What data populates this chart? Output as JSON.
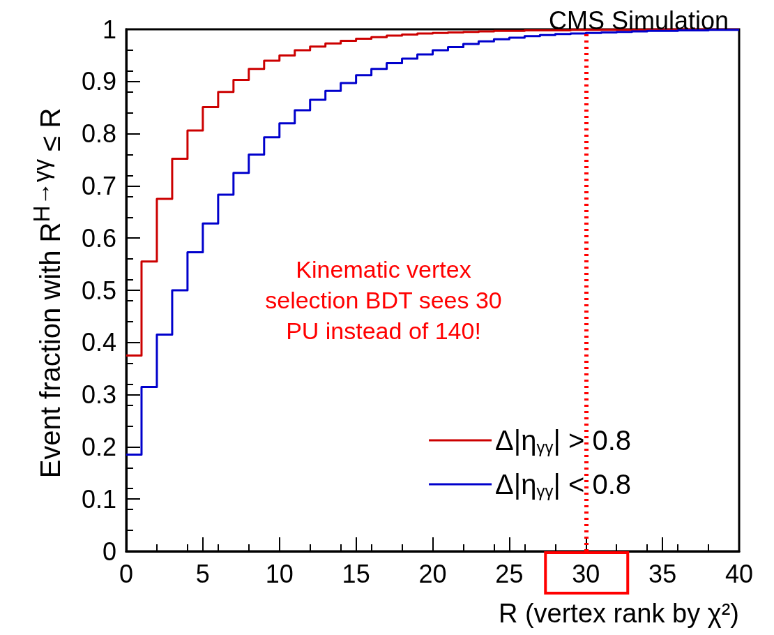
{
  "chart_data": {
    "type": "step",
    "title": "CMS Simulation",
    "xlabel": "R (vertex rank by χ²)",
    "ylabel": "Event fraction with R$^{H→γγ}$ ≤ R",
    "x": [
      0,
      1,
      2,
      3,
      4,
      5,
      6,
      7,
      8,
      9,
      10,
      11,
      12,
      13,
      14,
      15,
      16,
      17,
      18,
      19,
      20,
      21,
      22,
      23,
      24,
      25,
      26,
      27,
      28,
      29,
      30,
      31,
      32,
      33,
      34,
      35,
      36,
      37,
      38,
      39,
      40
    ],
    "series": [
      {
        "name": "Δ|η$_{γγ}$| > 0.8",
        "color": "#cc0000",
        "values": [
          0.375,
          0.555,
          0.675,
          0.752,
          0.806,
          0.851,
          0.88,
          0.903,
          0.924,
          0.94,
          0.95,
          0.96,
          0.967,
          0.973,
          0.978,
          0.982,
          0.985,
          0.988,
          0.99,
          0.992,
          0.993,
          0.994,
          0.995,
          0.996,
          0.997,
          0.997,
          0.998,
          0.998,
          0.998,
          0.999,
          0.999,
          0.999,
          0.999,
          0.999,
          1.0,
          1.0,
          1.0,
          1.0,
          1.0,
          1.0,
          1.0
        ]
      },
      {
        "name": "Δ|η$_{γγ}$| < 0.8",
        "color": "#0000cc",
        "values": [
          0.185,
          0.315,
          0.415,
          0.5,
          0.573,
          0.628,
          0.683,
          0.725,
          0.76,
          0.793,
          0.82,
          0.845,
          0.865,
          0.882,
          0.897,
          0.912,
          0.924,
          0.935,
          0.944,
          0.952,
          0.96,
          0.966,
          0.972,
          0.977,
          0.981,
          0.984,
          0.987,
          0.989,
          0.991,
          0.992,
          0.993,
          0.994,
          0.995,
          0.996,
          0.997,
          0.997,
          0.998,
          0.998,
          0.999,
          0.999,
          0.999
        ]
      }
    ],
    "xlim": [
      0,
      40
    ],
    "xticks": [
      0,
      5,
      10,
      15,
      20,
      25,
      30,
      35,
      40
    ],
    "ylim": [
      0,
      1
    ],
    "yticks": [
      0,
      0.1,
      0.2,
      0.3,
      0.4,
      0.5,
      0.6,
      0.7,
      0.8,
      0.9,
      1
    ],
    "ref_lines": [
      {
        "axis": "x",
        "value": 30,
        "label": null,
        "color": "#ff0000",
        "line_style": "dotted"
      }
    ],
    "annotations": [
      "Kinematic vertex\nselection BDT sees 30\nPU instead of 140!"
    ],
    "legend": "bottom right",
    "grid": false,
    "marker": "none",
    "line_style": "solid"
  }
}
